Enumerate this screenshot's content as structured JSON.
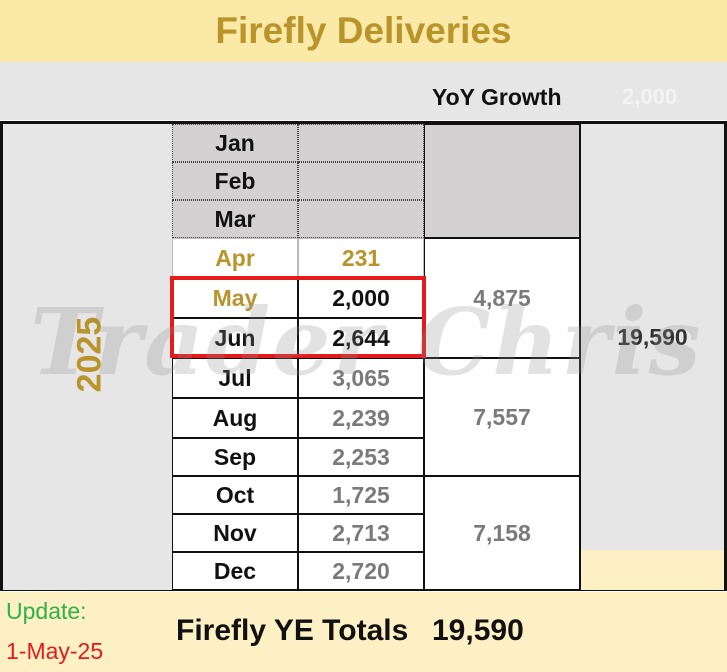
{
  "title": "Firefly Deliveries",
  "yoy": {
    "label": "YoY Growth",
    "value": "2,000"
  },
  "year": "2025",
  "months": [
    {
      "name": "Jan",
      "value": ""
    },
    {
      "name": "Feb",
      "value": ""
    },
    {
      "name": "Mar",
      "value": ""
    },
    {
      "name": "Apr",
      "value": "231"
    },
    {
      "name": "May",
      "value": "2,000"
    },
    {
      "name": "Jun",
      "value": "2,644"
    },
    {
      "name": "Jul",
      "value": "3,065"
    },
    {
      "name": "Aug",
      "value": "2,239"
    },
    {
      "name": "Sep",
      "value": "2,253"
    },
    {
      "name": "Oct",
      "value": "1,725"
    },
    {
      "name": "Nov",
      "value": "2,713"
    },
    {
      "name": "Dec",
      "value": "2,720"
    }
  ],
  "quarters": {
    "q1": "",
    "q2": "4,875",
    "q3": "7,557",
    "q4": "7,158"
  },
  "year_total": "19,590",
  "watermark": "Trader Chris",
  "footer": {
    "update_label": "Update:",
    "update_date": "1-May-25",
    "totals_label": "Firefly YE Totals",
    "totals_value": "19,590"
  },
  "colors": {
    "gold": "#b8942a",
    "highlight": "#e51b1b",
    "update_green": "#2db24a"
  }
}
